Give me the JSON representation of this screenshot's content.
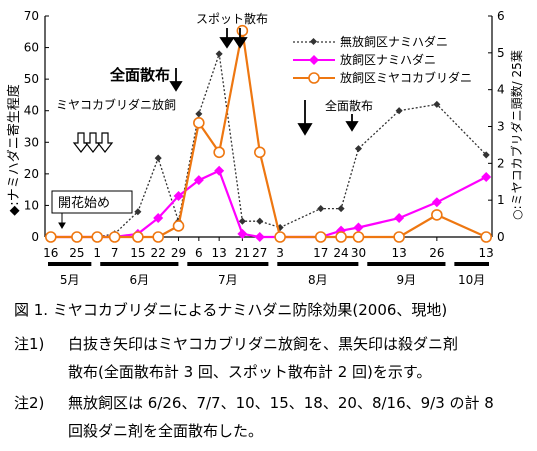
{
  "chart_data": {
    "type": "line",
    "x_dates": [
      "5/16",
      "5/25",
      "6/1",
      "6/7",
      "6/15",
      "6/22",
      "6/29",
      "7/6",
      "7/13",
      "7/21",
      "7/27",
      "8/3",
      "8/17",
      "8/24",
      "8/30",
      "9/13",
      "9/26",
      "10/13"
    ],
    "tick_labels": [
      "16",
      "25",
      "1",
      "7",
      "15",
      "22",
      "29",
      "6",
      "13",
      "21",
      "27",
      "3",
      "17",
      "24",
      "30",
      "13",
      "26",
      "13"
    ],
    "months": [
      "5月",
      "6月",
      "7月",
      "8月",
      "9月",
      "10月"
    ],
    "y_left": {
      "label": "◆:ナミハダニ寄生程度",
      "ylim": [
        0,
        70
      ],
      "ticks": [
        0,
        10,
        20,
        30,
        40,
        50,
        60,
        70
      ]
    },
    "y_right": {
      "label": "○:ミヤコカブリダニ頭数/ 25葉",
      "ylim": [
        0,
        6
      ],
      "ticks": [
        0,
        1,
        2,
        3,
        4,
        5,
        6
      ]
    },
    "series": [
      {
        "name": "無放飼区ナミハダニ",
        "axis": "left",
        "style": "dotted",
        "color": "#333333",
        "x": [
          "5/16",
          "5/25",
          "6/1",
          "6/7",
          "6/15",
          "6/22",
          "6/29",
          "7/6",
          "7/13",
          "7/21",
          "7/27",
          "8/3",
          "8/17",
          "8/24",
          "8/30",
          "9/13",
          "9/26",
          "10/13"
        ],
        "values": [
          0,
          0,
          0,
          1,
          8,
          25,
          5,
          39,
          58,
          5,
          5,
          3,
          9,
          9,
          28,
          40,
          42,
          26
        ]
      },
      {
        "name": "放飼区ナミハダニ",
        "axis": "left",
        "style": "solid",
        "color": "#ff00ff",
        "x": [
          "5/16",
          "5/25",
          "6/1",
          "6/7",
          "6/15",
          "6/22",
          "6/29",
          "7/6",
          "7/13",
          "7/21",
          "7/27",
          "8/17",
          "8/24",
          "8/30",
          "9/13",
          "9/26",
          "10/13"
        ],
        "values": [
          0,
          0,
          0,
          0,
          1,
          6,
          13,
          18,
          21,
          1,
          0,
          0,
          2,
          3,
          6,
          11,
          19
        ]
      },
      {
        "name": "放飼区ミヤコカブリダニ",
        "axis": "right",
        "style": "solid",
        "color": "#ee7711",
        "x": [
          "5/16",
          "5/25",
          "6/1",
          "6/7",
          "6/15",
          "6/22",
          "6/29",
          "7/6",
          "7/13",
          "7/21",
          "7/27",
          "8/3",
          "8/17",
          "8/24",
          "8/30",
          "9/13",
          "9/26",
          "10/13"
        ],
        "values": [
          0,
          0,
          0,
          0,
          0,
          0,
          0.3,
          3.1,
          2.3,
          5.6,
          2.3,
          0,
          0,
          0,
          0,
          0,
          0.6,
          0
        ]
      }
    ],
    "annotations": {
      "spot": "スポット散布",
      "full1": "全面散布",
      "release": "ミヤコカブリダニ放飼",
      "full2": "全面散布",
      "flower": "開花始め"
    }
  },
  "caption": "図 1. ミヤコカブリダニによるナミハダニ防除効果(2006、現地)",
  "notes": [
    {
      "label": "注1)",
      "line1": "白抜き矢印はミヤコカブリダニ放飼を、黒矢印は殺ダニ剤",
      "line2": "散布(全面散布計 3 回、スポット散布計 2 回)を示す。"
    },
    {
      "label": "注2)",
      "line1": "無放飼区は 6/26、7/7、10、15、18、20、8/16、9/3 の計 8",
      "line2": "回殺ダニ剤を全面散布した。"
    }
  ]
}
